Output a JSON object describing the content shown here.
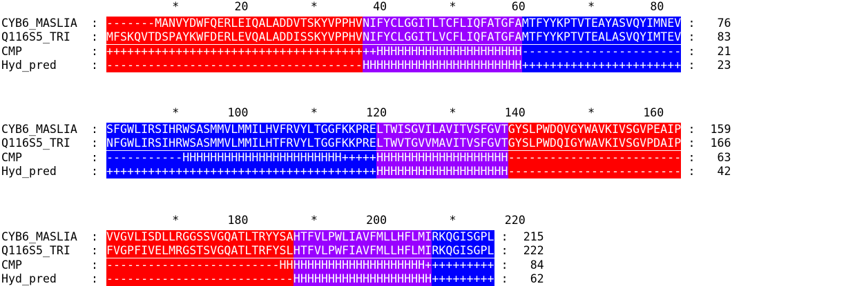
{
  "colors": {
    "red": "#ff0000",
    "purple": "#9900ff",
    "blue": "#0000ff"
  },
  "blocks": [
    {
      "ruler": [
        "*",
        "20",
        "*",
        "40",
        "*",
        "60",
        "*",
        "80"
      ],
      "rows": [
        {
          "name": "CYB6_MASLIA",
          "segments": [
            {
              "text": "-------MANVYDWFQERLEIQALADDVTSKYVPPHV",
              "color": "red"
            },
            {
              "text": "NIFYCLGGITLTCFLIQFATGFA",
              "color": "purple"
            },
            {
              "text": "MTFYYKPTVTEAYASVQYIMNEV",
              "color": "blue"
            }
          ],
          "end": "76"
        },
        {
          "name": "Q116S5_TRI",
          "segments": [
            {
              "text": "MFSKQVTDSPAYKWFDERLEVQALADDISSKYVPPHV",
              "color": "red"
            },
            {
              "text": "NIFYCLGGITLVCFLIQFATGFA",
              "color": "purple"
            },
            {
              "text": "MTFYYKPTVTEALASVQYIMTEV",
              "color": "blue"
            }
          ],
          "end": "83"
        },
        {
          "name": "CMP",
          "segments": [
            {
              "text": "+++++++++++++++++++++++++++++++++++++",
              "color": "red"
            },
            {
              "text": "++HHHHHHHHHHHHHHHHHHHHH",
              "color": "purple"
            },
            {
              "text": "-----------------------",
              "color": "blue"
            }
          ],
          "end": "21"
        },
        {
          "name": "Hyd_pred",
          "segments": [
            {
              "text": "-------------------------------------",
              "color": "red"
            },
            {
              "text": "HHHHHHHHHHHHHHHHHHHHHHH",
              "color": "purple"
            },
            {
              "text": "+++++++++++++++++++++++",
              "color": "blue"
            }
          ],
          "end": "23"
        }
      ]
    },
    {
      "ruler": [
        "*",
        "100",
        "*",
        "120",
        "*",
        "140",
        "*",
        "160"
      ],
      "rows": [
        {
          "name": "CYB6_MASLIA",
          "segments": [
            {
              "text": "SFGWLIRSIHRWSASMMVLMMILHVFRVYLTGGFKKPRE",
              "color": "blue"
            },
            {
              "text": "LTWISGVILAVITVSFGVT",
              "color": "purple"
            },
            {
              "text": "GYSLPWDQVGYWAVKIVSGVPEAIP",
              "color": "red"
            }
          ],
          "end": "159"
        },
        {
          "name": "Q116S5_TRI",
          "segments": [
            {
              "text": "NFGWLIRSIHRWSASMMVLMMILHTFRVYLTGGFKKPRE",
              "color": "blue"
            },
            {
              "text": "LTWVTGVVMAVITVSFGVT",
              "color": "purple"
            },
            {
              "text": "GYSLPWDQIGYWAVKIVSGVPDAIP",
              "color": "red"
            }
          ],
          "end": "166"
        },
        {
          "name": "CMP",
          "segments": [
            {
              "text": "-----------HHHHHHHHHHHHHHHHHHHHHHH+++++",
              "color": "blue"
            },
            {
              "text": "HHHHHHHHHHHHHHHHHHH",
              "color": "purple"
            },
            {
              "text": "-------------------------",
              "color": "red"
            }
          ],
          "end": "63"
        },
        {
          "name": "Hyd_pred",
          "segments": [
            {
              "text": "+++++++++++++++++++++++++++++++++++++++",
              "color": "blue"
            },
            {
              "text": "HHHHHHHHHHHHHHHHHHH",
              "color": "purple"
            },
            {
              "text": "-------------------------",
              "color": "red"
            }
          ],
          "end": "42"
        }
      ]
    },
    {
      "ruler": [
        "*",
        "180",
        "*",
        "200",
        "*",
        "220"
      ],
      "rows": [
        {
          "name": "CYB6_MASLIA",
          "segments": [
            {
              "text": "VVGVLISDLLRGGSSVGQATLTRYYSA",
              "color": "red"
            },
            {
              "text": "HTFVLPWLIAVFMLLHFLMI",
              "color": "purple"
            },
            {
              "text": "RKQGISGPL",
              "color": "blue"
            }
          ],
          "end": "215"
        },
        {
          "name": "Q116S5_TRI",
          "segments": [
            {
              "text": "FVGPFIVELMRGSTSVGQATLTRFYSL",
              "color": "red"
            },
            {
              "text": "HTFVLPWFIAVFMLLHFLMI",
              "color": "purple"
            },
            {
              "text": "RKQGISGPL",
              "color": "blue"
            }
          ],
          "end": "222"
        },
        {
          "name": "CMP",
          "segments": [
            {
              "text": "-------------------------HH",
              "color": "red"
            },
            {
              "text": "HHHHHHHHHHHHHHHHHHH+",
              "color": "purple"
            },
            {
              "text": "+++++++++",
              "color": "blue"
            }
          ],
          "end": "84"
        },
        {
          "name": "Hyd_pred",
          "segments": [
            {
              "text": "---------------------------",
              "color": "red"
            },
            {
              "text": "HHHHHHHHHHHHHHHHHHHH",
              "color": "purple"
            },
            {
              "text": "+++++++++",
              "color": "blue"
            }
          ],
          "end": "62"
        }
      ]
    }
  ]
}
